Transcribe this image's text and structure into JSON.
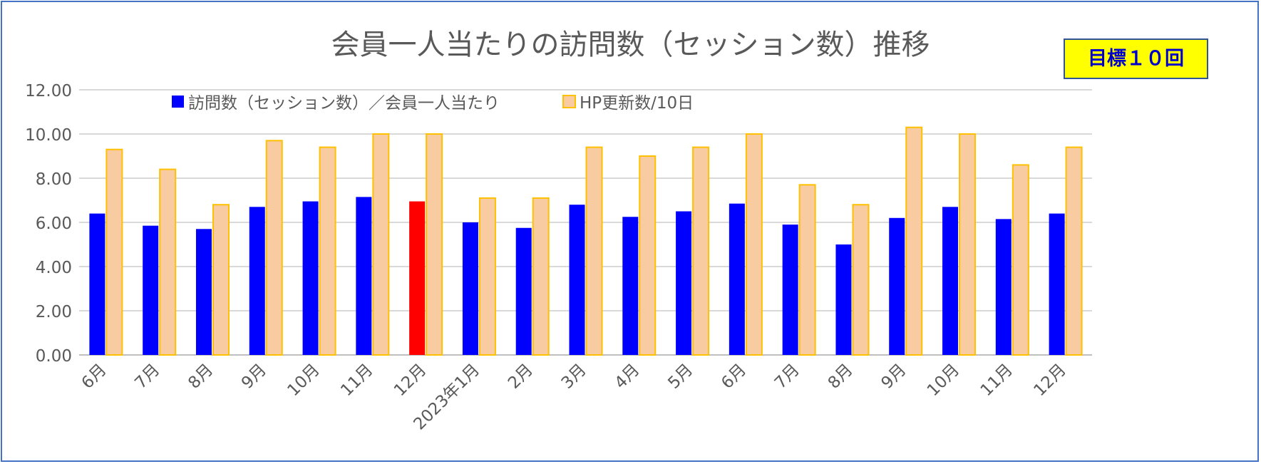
{
  "chart_data": {
    "type": "bar",
    "title": "会員一人当たりの訪問数（セッション数）推移",
    "annotation": "目標１０回",
    "categories": [
      "6月",
      "7月",
      "8月",
      "9月",
      "10月",
      "11月",
      "12月",
      "2023年1月",
      "2月",
      "3月",
      "4月",
      "5月",
      "6月",
      "7月",
      "8月",
      "9月",
      "10月",
      "11月",
      "12月"
    ],
    "series": [
      {
        "name": "訪問数（セッション数）／会員一人当たり",
        "color": "#0000ff",
        "values": [
          6.4,
          5.85,
          5.7,
          6.7,
          6.95,
          7.15,
          6.95,
          6.0,
          5.75,
          6.8,
          6.25,
          6.5,
          6.85,
          5.9,
          5.0,
          6.2,
          6.7,
          6.15,
          6.4
        ]
      },
      {
        "name": "HP更新数/10日",
        "color": "#f8cba0",
        "border": "#ffc000",
        "values": [
          9.3,
          8.4,
          6.8,
          9.7,
          9.4,
          10.0,
          10.0,
          7.1,
          7.1,
          9.4,
          9.0,
          9.4,
          10.0,
          7.7,
          6.8,
          10.3,
          10.0,
          8.6,
          9.4
        ]
      }
    ],
    "highlight": {
      "series": 0,
      "index": 6,
      "color": "#ff0000"
    },
    "y_ticks": [
      "0.00",
      "2.00",
      "4.00",
      "6.00",
      "8.00",
      "10.00",
      "12.00"
    ],
    "ylim": [
      0,
      12
    ],
    "grid": true,
    "legend": "top-left"
  }
}
